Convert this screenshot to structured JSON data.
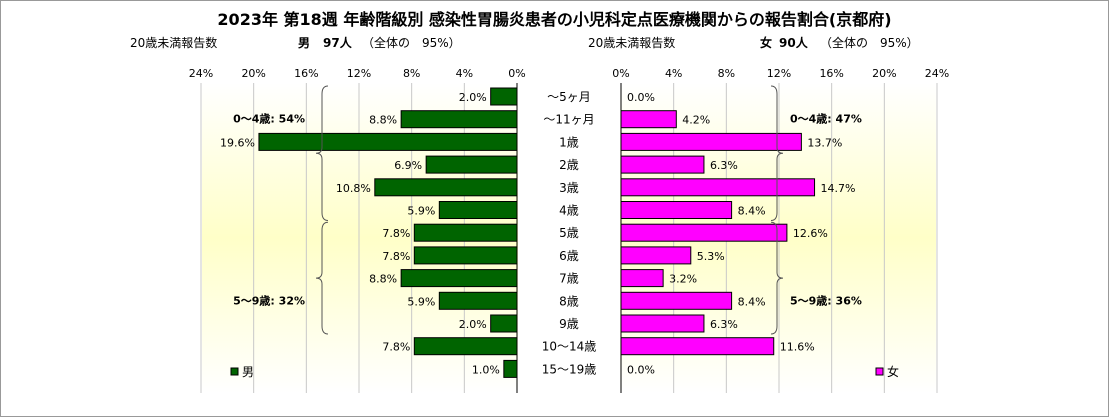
{
  "title": "2023年 第18週  年齢階級別 感染性胃腸炎患者の小児科定点医療機関からの報告割合(京都府)",
  "male_header": {
    "label": "20歳未満報告数",
    "gender": "男",
    "count": "97人",
    "share": "（全体の　95%）"
  },
  "female_header": {
    "label": "20歳未満報告数",
    "gender": "女",
    "count": "90人",
    "share": "（全体の　95%）"
  },
  "male_ticks": [
    "24%",
    "20%",
    "16%",
    "12%",
    "8%",
    "4%",
    "0%"
  ],
  "female_ticks": [
    "0%",
    "4%",
    "8%",
    "12%",
    "16%",
    "20%",
    "24%"
  ],
  "male_brackets": {
    "young": "0～4歳: 54%",
    "older": "5～9歳: 32%"
  },
  "female_brackets": {
    "young": "0～4歳: 47%",
    "older": "5～9歳: 36%"
  },
  "legend": {
    "male": "男",
    "female": "女"
  },
  "colors": {
    "male": "#006400",
    "female": "#ff00ff",
    "band": "#ffffc8"
  },
  "chart_data": {
    "type": "bar",
    "orientation": "horizontal",
    "categories": [
      "～5ヶ月",
      "～11ヶ月",
      "1歳",
      "2歳",
      "3歳",
      "4歳",
      "5歳",
      "6歳",
      "7歳",
      "8歳",
      "9歳",
      "10～14歳",
      "15～19歳"
    ],
    "series": [
      {
        "name": "男",
        "values": [
          2.0,
          8.8,
          19.6,
          6.9,
          10.8,
          5.9,
          7.8,
          7.8,
          8.8,
          5.9,
          2.0,
          7.8,
          1.0
        ],
        "labels": [
          "2.0%",
          "8.8%",
          "19.6%",
          "6.9%",
          "10.8%",
          "5.9%",
          "7.8%",
          "7.8%",
          "8.8%",
          "5.9%",
          "2.0%",
          "7.8%",
          "1.0%"
        ]
      },
      {
        "name": "女",
        "values": [
          0.0,
          4.2,
          13.7,
          6.3,
          14.7,
          8.4,
          12.6,
          5.3,
          3.2,
          8.4,
          6.3,
          11.6,
          0.0
        ],
        "labels": [
          "0.0%",
          "4.2%",
          "13.7%",
          "6.3%",
          "14.7%",
          "8.4%",
          "12.6%",
          "5.3%",
          "3.2%",
          "8.4%",
          "6.3%",
          "11.6%",
          "0.0%"
        ]
      }
    ],
    "xlim": [
      0,
      24
    ],
    "grid": true
  }
}
